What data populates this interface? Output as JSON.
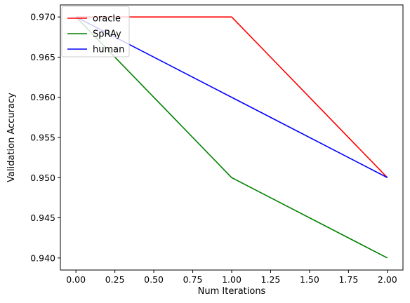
{
  "chart_data": {
    "type": "line",
    "title": "",
    "xlabel": "Num Iterations",
    "ylabel": "Validation Accuracy",
    "x": [
      0,
      1,
      2
    ],
    "xlim": [
      -0.1,
      2.1
    ],
    "ylim": [
      0.9385,
      0.9715
    ],
    "xticks": [
      0.0,
      0.25,
      0.5,
      0.75,
      1.0,
      1.25,
      1.5,
      1.75,
      2.0
    ],
    "xtick_labels": [
      "0.00",
      "0.25",
      "0.50",
      "0.75",
      "1.00",
      "1.25",
      "1.50",
      "1.75",
      "2.00"
    ],
    "yticks": [
      0.94,
      0.945,
      0.95,
      0.955,
      0.96,
      0.965,
      0.97
    ],
    "ytick_labels": [
      "0.940",
      "0.945",
      "0.950",
      "0.955",
      "0.960",
      "0.965",
      "0.970"
    ],
    "grid": false,
    "legend_position": "top-left",
    "series": [
      {
        "name": "oracle",
        "color": "#ff0000",
        "values": [
          0.97,
          0.97,
          0.95
        ]
      },
      {
        "name": "SpRAy",
        "color": "#008000",
        "values": [
          0.97,
          0.95,
          0.94
        ]
      },
      {
        "name": "human",
        "color": "#0000ff",
        "values": [
          0.97,
          0.96,
          0.95
        ]
      }
    ]
  }
}
